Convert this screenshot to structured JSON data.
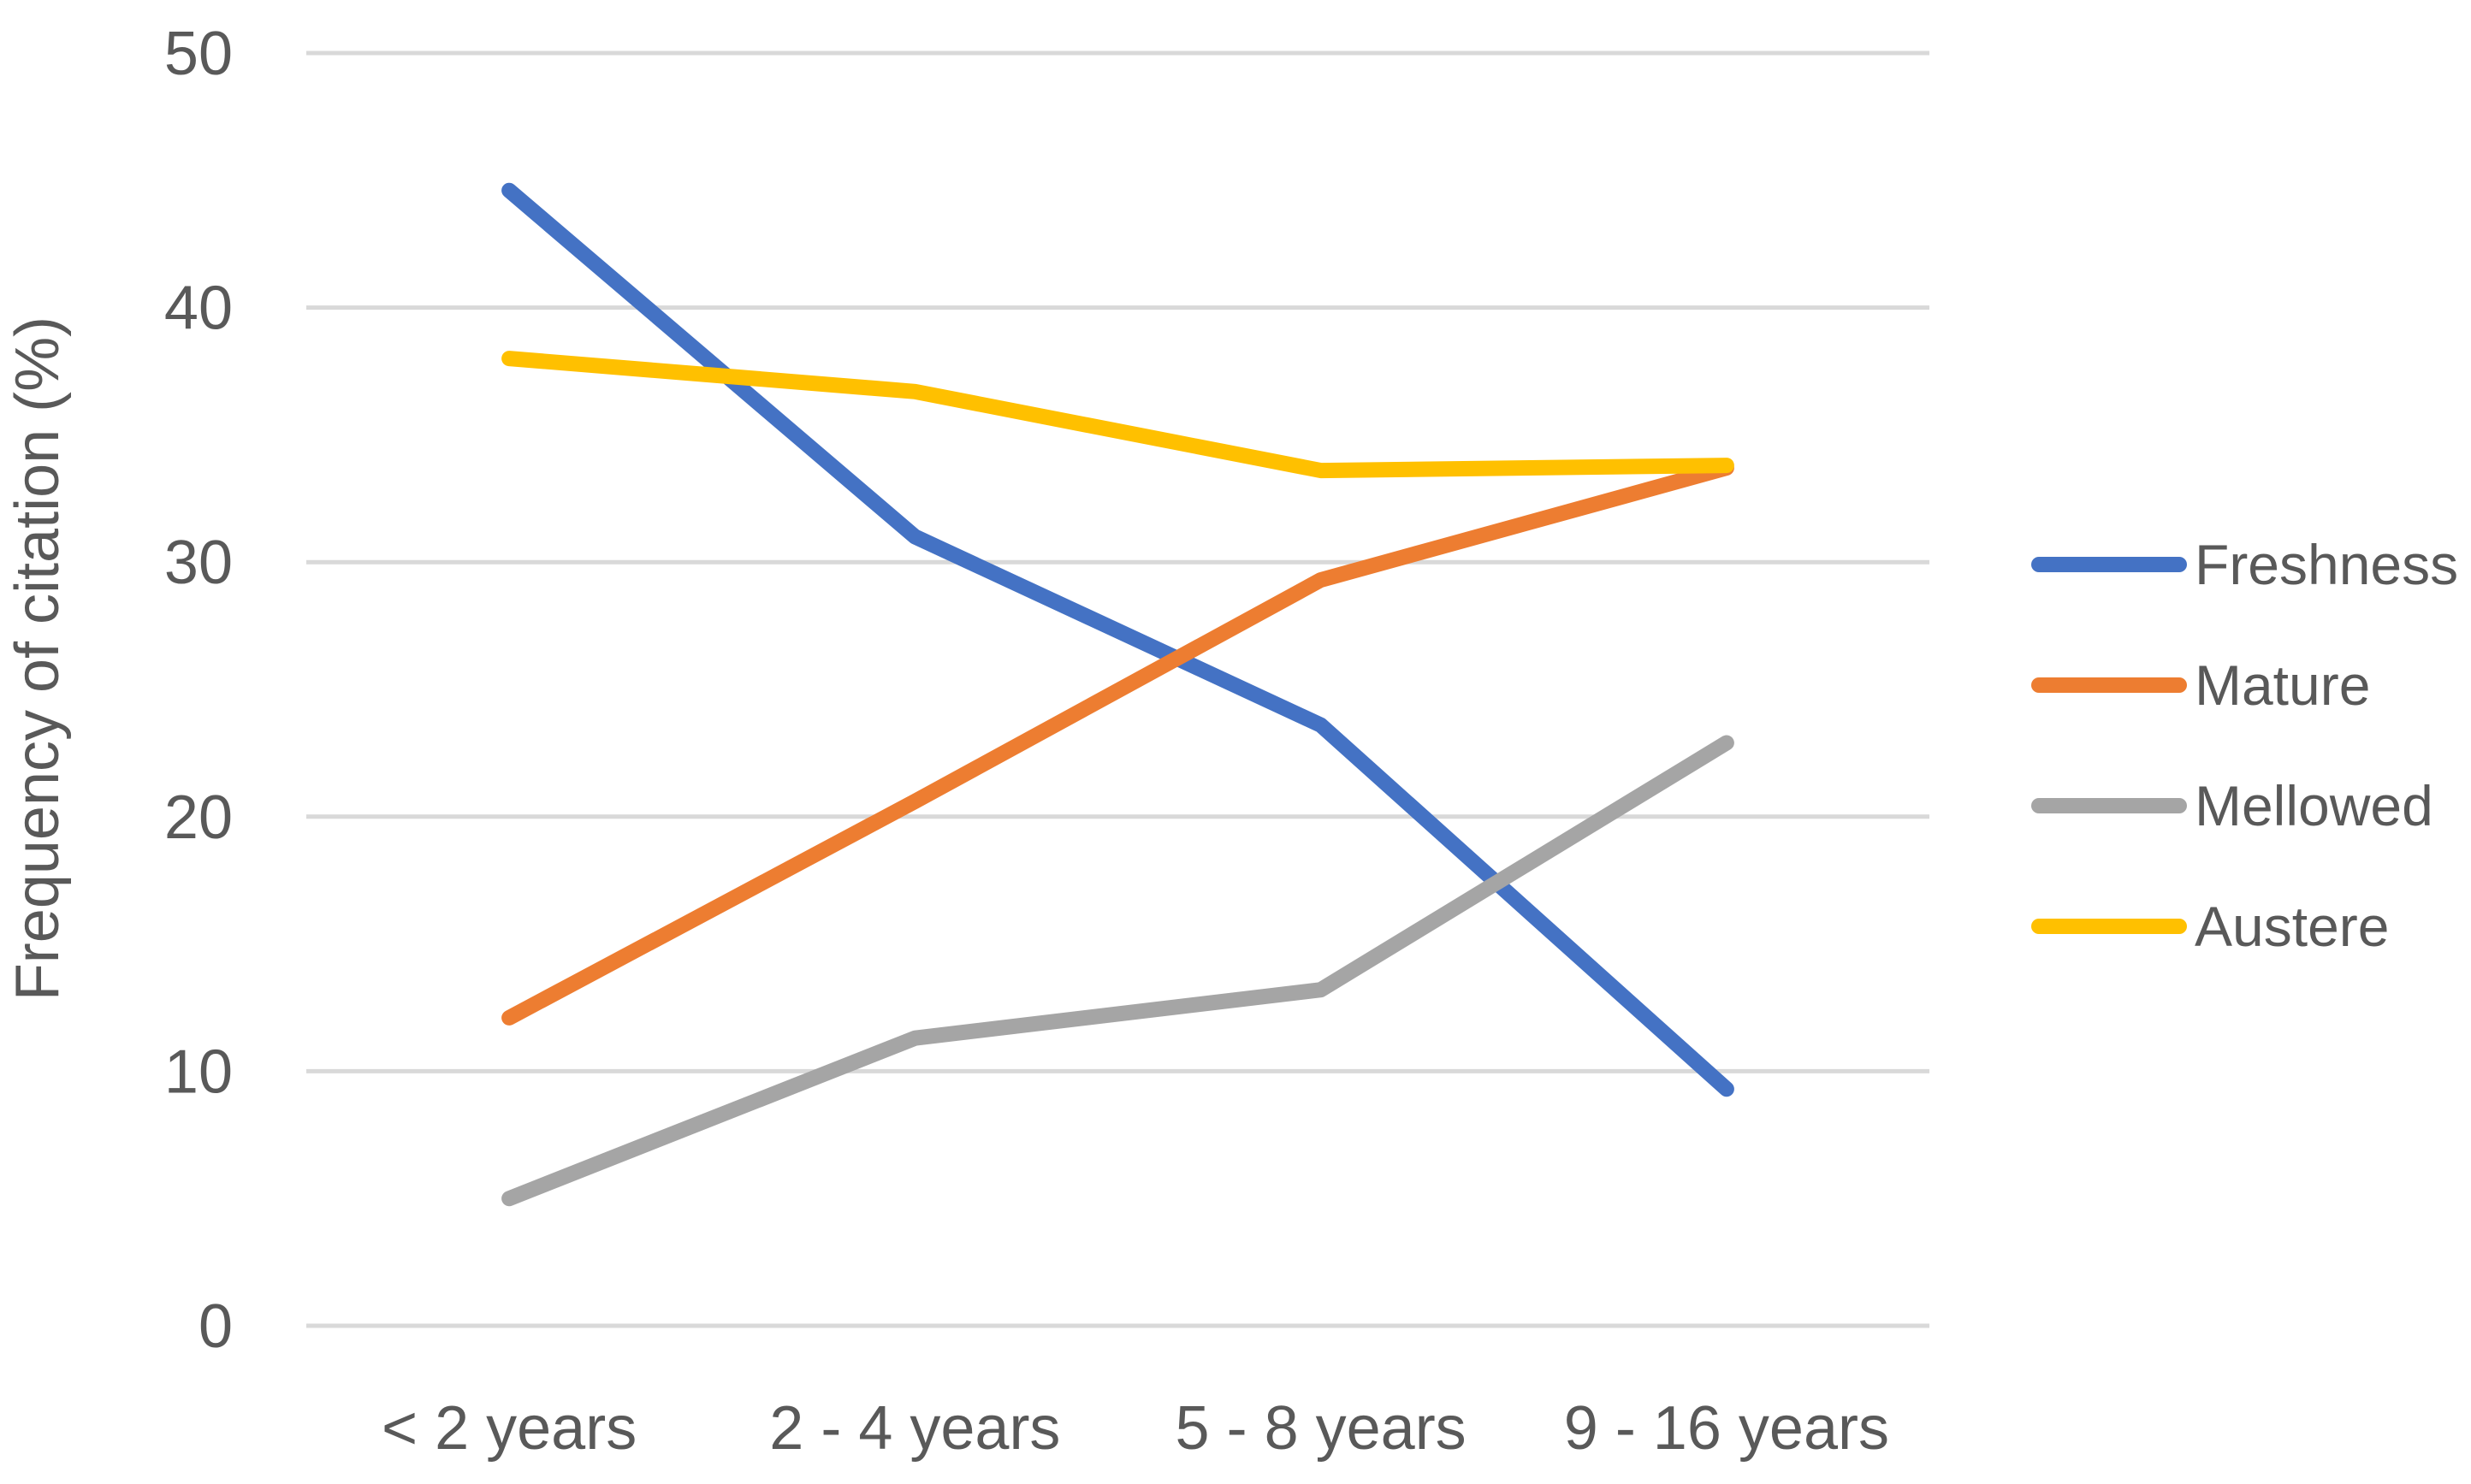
{
  "chart_data": {
    "type": "line",
    "title": "",
    "xlabel": "",
    "ylabel": "Frequency of citation (%)",
    "categories": [
      "< 2 years",
      "2 - 4 years",
      "5 - 8 years",
      "9 - 16 years"
    ],
    "ylim": [
      0,
      50
    ],
    "yticks": [
      0,
      10,
      20,
      30,
      40,
      50
    ],
    "grid": true,
    "legend_position": "right",
    "series": [
      {
        "name": "Freshness",
        "color": "#4472C4",
        "values": [
          44.6,
          31.0,
          23.6,
          9.3
        ]
      },
      {
        "name": "Mature",
        "color": "#ED7D31",
        "values": [
          12.1,
          20.6,
          29.3,
          33.7
        ]
      },
      {
        "name": "Mellowed",
        "color": "#A5A5A5",
        "values": [
          5.0,
          11.3,
          13.2,
          22.9
        ]
      },
      {
        "name": "Austere",
        "color": "#FFC000",
        "values": [
          38.0,
          36.7,
          33.6,
          33.8
        ]
      }
    ]
  }
}
